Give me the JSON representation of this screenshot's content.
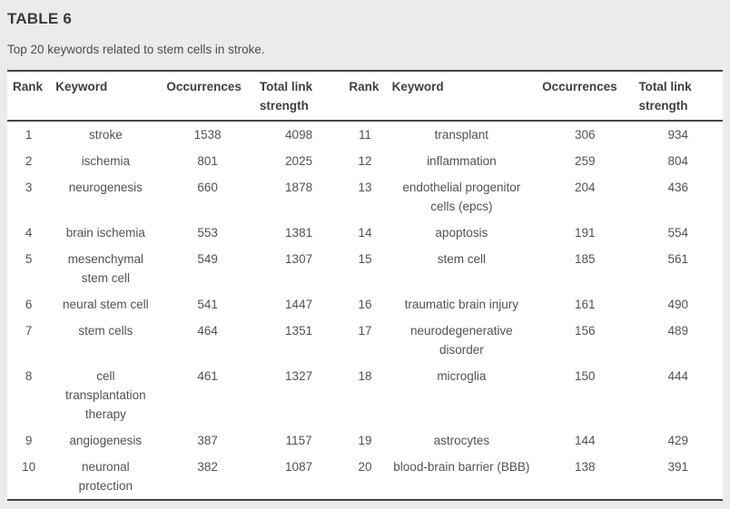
{
  "table": {
    "title": "TABLE 6",
    "caption": "Top 20 keywords related to stem cells in stroke.",
    "columns": [
      "Rank",
      "Keyword",
      "Occurrences",
      "Total link strength",
      "Rank",
      "Keyword",
      "Occurrences",
      "Total link strength"
    ],
    "rows": [
      [
        1,
        "stroke",
        1538,
        4098,
        11,
        "transplant",
        306,
        934
      ],
      [
        2,
        "ischemia",
        801,
        2025,
        12,
        "inflammation",
        259,
        804
      ],
      [
        3,
        "neurogenesis",
        660,
        1878,
        13,
        "endothelial progenitor cells (epcs)",
        204,
        436
      ],
      [
        4,
        "brain ischemia",
        553,
        1381,
        14,
        "apoptosis",
        191,
        554
      ],
      [
        5,
        "mesenchymal stem cell",
        549,
        1307,
        15,
        "stem cell",
        185,
        561
      ],
      [
        6,
        "neural stem cell",
        541,
        1447,
        16,
        "traumatic brain injury",
        161,
        490
      ],
      [
        7,
        "stem cells",
        464,
        1351,
        17,
        "neurodegenerative disorder",
        156,
        489
      ],
      [
        8,
        "cell transplantation therapy",
        461,
        1327,
        18,
        "microglia",
        150,
        444
      ],
      [
        9,
        "angiogenesis",
        387,
        1157,
        19,
        "astrocytes",
        144,
        429
      ],
      [
        10,
        "neuronal protection",
        382,
        1087,
        20,
        "blood-brain barrier (BBB)",
        138,
        391
      ]
    ]
  },
  "colors": {
    "page_background": "#ebebeb",
    "table_background": "#ffffff",
    "rule": "#454545",
    "title_text": "#3a3a3a",
    "body_text": "#525252"
  }
}
